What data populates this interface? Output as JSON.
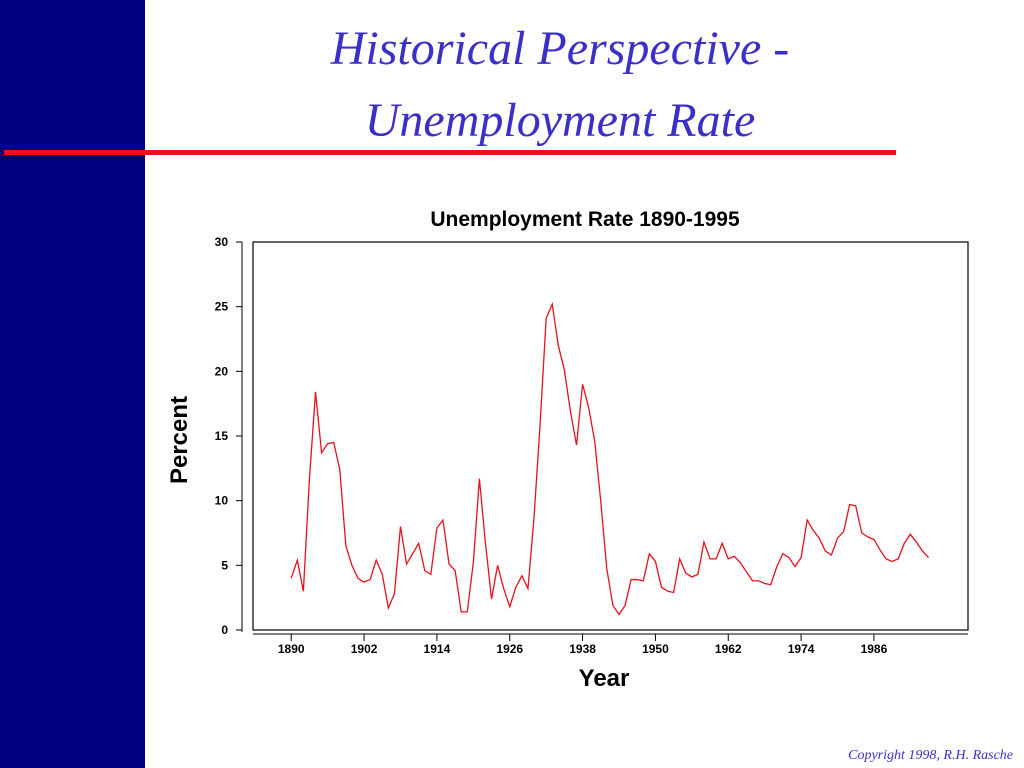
{
  "slide": {
    "title": [
      "Historical Perspective -",
      "Unemployment Rate"
    ],
    "copyright": "Copyright 1998, R.H. Rasche"
  },
  "chart_data": {
    "type": "line",
    "title": "Unemployment Rate 1890-1995",
    "x_label": "Year",
    "y_label": "Percent",
    "x": [
      1890,
      1891,
      1892,
      1893,
      1894,
      1895,
      1896,
      1897,
      1898,
      1899,
      1900,
      1901,
      1902,
      1903,
      1904,
      1905,
      1906,
      1907,
      1908,
      1909,
      1910,
      1911,
      1912,
      1913,
      1914,
      1915,
      1916,
      1917,
      1918,
      1919,
      1920,
      1921,
      1922,
      1923,
      1924,
      1925,
      1926,
      1927,
      1928,
      1929,
      1930,
      1931,
      1932,
      1933,
      1934,
      1935,
      1936,
      1937,
      1938,
      1939,
      1940,
      1941,
      1942,
      1943,
      1944,
      1945,
      1946,
      1947,
      1948,
      1949,
      1950,
      1951,
      1952,
      1953,
      1954,
      1955,
      1956,
      1957,
      1958,
      1959,
      1960,
      1961,
      1962,
      1963,
      1964,
      1965,
      1966,
      1967,
      1968,
      1969,
      1970,
      1971,
      1972,
      1973,
      1974,
      1975,
      1976,
      1977,
      1978,
      1979,
      1980,
      1981,
      1982,
      1983,
      1984,
      1985,
      1986,
      1987,
      1988,
      1989,
      1990,
      1991,
      1992,
      1993,
      1994,
      1995
    ],
    "series": [
      {
        "color": "#e8101a",
        "values": [
          4.0,
          5.4,
          3.0,
          11.7,
          18.4,
          13.7,
          14.4,
          14.5,
          12.4,
          6.5,
          5.0,
          4.0,
          3.7,
          3.9,
          5.4,
          4.3,
          1.7,
          2.8,
          8.0,
          5.1,
          5.9,
          6.7,
          4.6,
          4.3,
          7.9,
          8.5,
          5.1,
          4.6,
          1.4,
          1.4,
          5.2,
          11.7,
          6.7,
          2.4,
          5.0,
          3.2,
          1.8,
          3.3,
          4.2,
          3.2,
          8.7,
          15.9,
          24.1,
          25.2,
          22.0,
          20.1,
          16.9,
          14.3,
          19.0,
          17.2,
          14.6,
          9.9,
          4.7,
          1.9,
          1.2,
          1.9,
          3.9,
          3.9,
          3.8,
          5.9,
          5.3,
          3.3,
          3.0,
          2.9,
          5.5,
          4.4,
          4.1,
          4.3,
          6.8,
          5.5,
          5.5,
          6.7,
          5.5,
          5.7,
          5.2,
          4.5,
          3.8,
          3.8,
          3.6,
          3.5,
          4.9,
          5.9,
          5.6,
          4.9,
          5.6,
          8.5,
          7.7,
          7.1,
          6.1,
          5.8,
          7.1,
          7.6,
          9.7,
          9.6,
          7.5,
          7.2,
          7.0,
          6.2,
          5.5,
          5.3,
          5.5,
          6.7,
          7.4,
          6.8,
          6.1,
          5.6
        ]
      }
    ],
    "xlim": [
      1883.7,
      2001.5
    ],
    "xticks": [
      1890,
      1902,
      1914,
      1926,
      1938,
      1950,
      1962,
      1974,
      1986
    ],
    "ylim": [
      0,
      30
    ],
    "yticks": [
      0,
      5,
      10,
      15,
      20,
      25,
      30
    ]
  }
}
